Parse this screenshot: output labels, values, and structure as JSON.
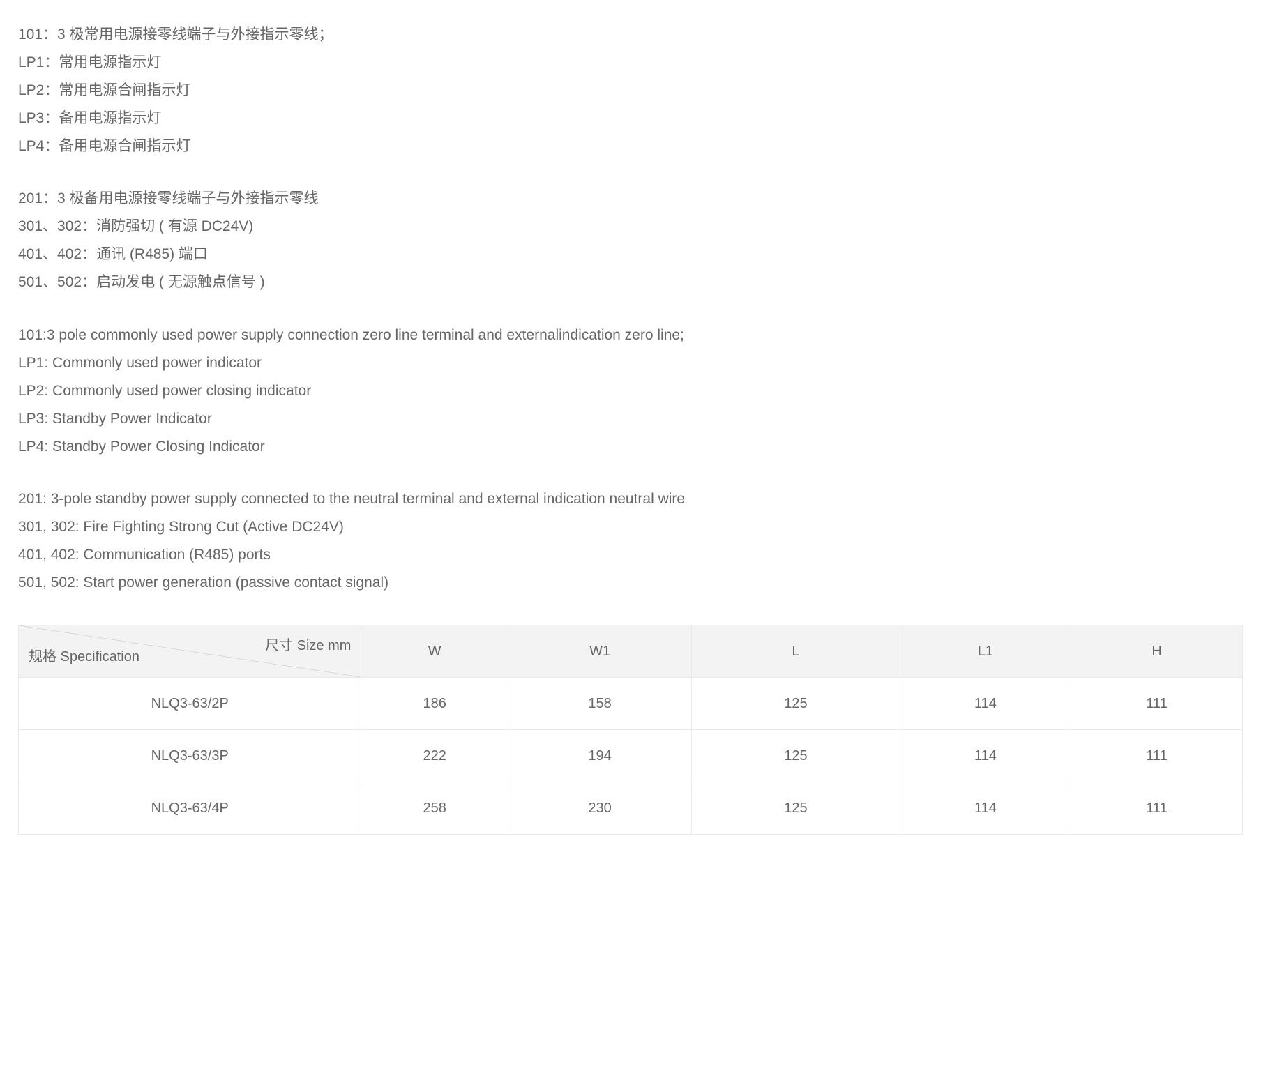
{
  "text_blocks": [
    [
      "101：3 极常用电源接零线端子与外接指示零线；",
      "LP1：常用电源指示灯",
      "LP2：常用电源合闸指示灯",
      "LP3：备用电源指示灯",
      "LP4：备用电源合闸指示灯"
    ],
    [
      "201：3 极备用电源接零线端子与外接指示零线",
      "301、302：消防强切 ( 有源 DC24V)",
      "401、402：通讯 (R485) 端口",
      "501、502：启动发电 ( 无源触点信号 )"
    ],
    [
      "101:3 pole commonly used power supply connection zero line terminal and externalindication zero line;",
      "LP1: Commonly used power indicator",
      "LP2: Commonly used power closing indicator",
      "LP3: Standby Power Indicator",
      "LP4: Standby Power Closing Indicator"
    ],
    [
      "201: 3-pole standby power supply connected to the neutral terminal and external indication neutral wire",
      "301, 302: Fire Fighting Strong Cut (Active DC24V)",
      "401, 402: Communication (R485) ports",
      "501, 502: Start power generation (passive contact signal)"
    ]
  ],
  "table": {
    "diag_top": "尺寸 Size mm",
    "diag_bottom": "规格 Specification",
    "columns": [
      "W",
      "W1",
      "L",
      "L1",
      "H"
    ],
    "rows": [
      {
        "spec": "NLQ3-63/2P",
        "values": [
          "186",
          "158",
          "125",
          "114",
          "111"
        ]
      },
      {
        "spec": "NLQ3-63/3P",
        "values": [
          "222",
          "194",
          "125",
          "114",
          "111"
        ]
      },
      {
        "spec": "NLQ3-63/4P",
        "values": [
          "258",
          "230",
          "125",
          "114",
          "111"
        ]
      }
    ],
    "colors": {
      "header_bg": "#f3f3f3",
      "border": "#e9e9e9",
      "text": "#666666",
      "diag_line": "#cccccc"
    }
  }
}
